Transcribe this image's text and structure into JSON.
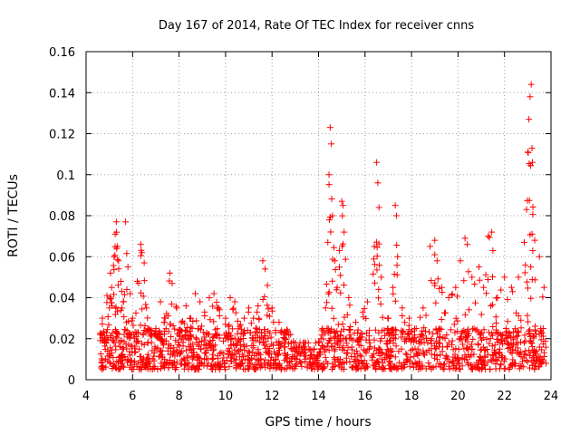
{
  "chart_data": {
    "type": "scatter",
    "title": "Day 167 of 2014, Rate Of TEC Index for receiver cnns",
    "xlabel": "GPS time / hours",
    "ylabel": "ROTI / TECUs",
    "xlim": [
      4,
      24
    ],
    "ylim": [
      0,
      0.16
    ],
    "x_ticks": [
      4,
      6,
      8,
      10,
      12,
      14,
      16,
      18,
      20,
      22,
      24
    ],
    "x_tick_labels": [
      "4",
      "6",
      "8",
      "10",
      "12",
      "14",
      "16",
      "18",
      "20",
      "22",
      "24"
    ],
    "y_ticks": [
      0,
      0.02,
      0.04,
      0.06,
      0.08,
      0.1,
      0.12,
      0.14,
      0.16
    ],
    "y_tick_labels": [
      "0",
      "0.02",
      "0.04",
      "0.06",
      "0.08",
      "0.1",
      "0.12",
      "0.14",
      "0.16"
    ],
    "grid": true,
    "marker": "+",
    "series_color": "#ff0000",
    "series": [
      {
        "name": "ROTI",
        "points": [
          [
            4.6,
            0.022
          ],
          [
            4.7,
            0.03
          ],
          [
            4.8,
            0.018
          ],
          [
            4.9,
            0.041
          ],
          [
            5.0,
            0.035
          ],
          [
            5.05,
            0.052
          ],
          [
            5.1,
            0.045
          ],
          [
            5.2,
            0.06
          ],
          [
            5.25,
            0.071
          ],
          [
            5.3,
            0.077
          ],
          [
            5.35,
            0.065
          ],
          [
            5.4,
            0.058
          ],
          [
            5.5,
            0.048
          ],
          [
            5.6,
            0.038
          ],
          [
            5.7,
            0.077
          ],
          [
            5.8,
            0.055
          ],
          [
            5.9,
            0.042
          ],
          [
            6.0,
            0.03
          ],
          [
            6.2,
            0.048
          ],
          [
            6.35,
            0.066
          ],
          [
            6.4,
            0.062
          ],
          [
            6.5,
            0.057
          ],
          [
            6.6,
            0.035
          ],
          [
            6.8,
            0.022
          ],
          [
            7.0,
            0.025
          ],
          [
            7.2,
            0.038
          ],
          [
            7.4,
            0.03
          ],
          [
            7.6,
            0.052
          ],
          [
            7.7,
            0.047
          ],
          [
            7.9,
            0.035
          ],
          [
            8.1,
            0.028
          ],
          [
            8.3,
            0.036
          ],
          [
            8.5,
            0.03
          ],
          [
            8.7,
            0.042
          ],
          [
            8.9,
            0.038
          ],
          [
            9.1,
            0.033
          ],
          [
            9.3,
            0.04
          ],
          [
            9.5,
            0.042
          ],
          [
            9.7,
            0.035
          ],
          [
            10.0,
            0.03
          ],
          [
            10.2,
            0.04
          ],
          [
            10.4,
            0.038
          ],
          [
            10.6,
            0.026
          ],
          [
            10.8,
            0.03
          ],
          [
            11.0,
            0.035
          ],
          [
            11.2,
            0.03
          ],
          [
            11.4,
            0.036
          ],
          [
            11.6,
            0.058
          ],
          [
            11.7,
            0.054
          ],
          [
            11.8,
            0.046
          ],
          [
            12.0,
            0.035
          ],
          [
            12.3,
            0.028
          ],
          [
            12.6,
            0.022
          ],
          [
            13.0,
            0.018
          ],
          [
            13.4,
            0.016
          ],
          [
            13.8,
            0.015
          ],
          [
            14.1,
            0.02
          ],
          [
            14.3,
            0.035
          ],
          [
            14.4,
            0.067
          ],
          [
            14.45,
            0.1
          ],
          [
            14.5,
            0.123
          ],
          [
            14.55,
            0.115
          ],
          [
            14.6,
            0.08
          ],
          [
            14.7,
            0.058
          ],
          [
            14.8,
            0.045
          ],
          [
            14.9,
            0.063
          ],
          [
            15.0,
            0.087
          ],
          [
            15.05,
            0.085
          ],
          [
            15.1,
            0.072
          ],
          [
            15.3,
            0.04
          ],
          [
            15.6,
            0.028
          ],
          [
            15.9,
            0.033
          ],
          [
            16.1,
            0.038
          ],
          [
            16.4,
            0.065
          ],
          [
            16.5,
            0.106
          ],
          [
            16.55,
            0.096
          ],
          [
            16.6,
            0.084
          ],
          [
            16.7,
            0.05
          ],
          [
            17.0,
            0.03
          ],
          [
            17.2,
            0.045
          ],
          [
            17.3,
            0.085
          ],
          [
            17.35,
            0.08
          ],
          [
            17.4,
            0.06
          ],
          [
            17.6,
            0.035
          ],
          [
            17.9,
            0.03
          ],
          [
            18.2,
            0.025
          ],
          [
            18.5,
            0.035
          ],
          [
            18.8,
            0.065
          ],
          [
            19.0,
            0.068
          ],
          [
            19.1,
            0.058
          ],
          [
            19.3,
            0.045
          ],
          [
            19.6,
            0.04
          ],
          [
            19.9,
            0.045
          ],
          [
            20.1,
            0.058
          ],
          [
            20.3,
            0.069
          ],
          [
            20.4,
            0.066
          ],
          [
            20.6,
            0.05
          ],
          [
            20.9,
            0.055
          ],
          [
            21.1,
            0.045
          ],
          [
            21.3,
            0.07
          ],
          [
            21.45,
            0.072
          ],
          [
            21.5,
            0.063
          ],
          [
            21.7,
            0.04
          ],
          [
            22.0,
            0.05
          ],
          [
            22.3,
            0.045
          ],
          [
            22.6,
            0.05
          ],
          [
            22.85,
            0.067
          ],
          [
            22.95,
            0.083
          ],
          [
            23.0,
            0.111
          ],
          [
            23.05,
            0.127
          ],
          [
            23.1,
            0.138
          ],
          [
            23.15,
            0.144
          ],
          [
            23.2,
            0.106
          ],
          [
            23.3,
            0.068
          ],
          [
            23.5,
            0.06
          ],
          [
            23.7,
            0.045
          ]
        ],
        "dense_band": {
          "x_range": [
            4.6,
            23.8
          ],
          "y_range": [
            0.005,
            0.025
          ]
        }
      }
    ]
  }
}
